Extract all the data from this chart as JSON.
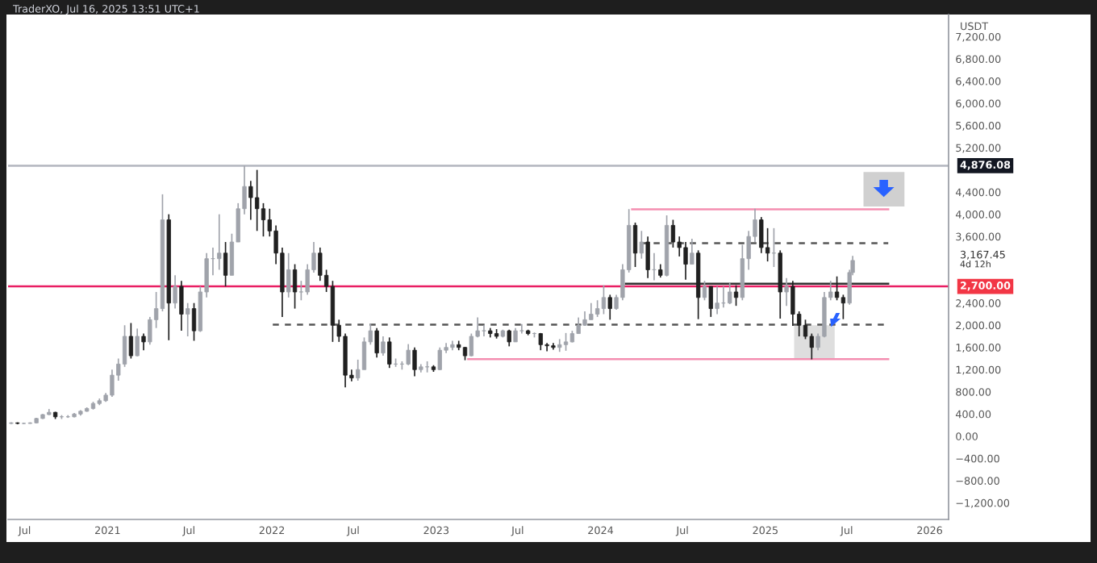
{
  "chart_data": {
    "type": "candlestick",
    "title": "TraderXO, Jul 16, 2025 13:51 UTC+1",
    "ylabel": "USDT",
    "x": [
      "2020-06-01",
      "2020-06-15",
      "2020-06-29",
      "2020-07-13",
      "2020-07-27",
      "2020-08-10",
      "2020-08-24",
      "2020-09-07",
      "2020-09-21",
      "2020-10-05",
      "2020-10-19",
      "2020-11-02",
      "2020-11-16",
      "2020-11-30",
      "2020-12-14",
      "2020-12-28",
      "2021-01-11",
      "2021-01-25",
      "2021-02-08",
      "2021-02-22",
      "2021-03-08",
      "2021-03-22",
      "2021-04-05",
      "2021-04-19",
      "2021-05-03",
      "2021-05-17",
      "2021-05-31",
      "2021-06-14",
      "2021-06-28",
      "2021-07-12",
      "2021-07-26",
      "2021-08-09",
      "2021-08-23",
      "2021-09-06",
      "2021-09-20",
      "2021-10-04",
      "2021-10-18",
      "2021-11-01",
      "2021-11-15",
      "2021-11-29",
      "2021-12-13",
      "2021-12-27",
      "2022-01-10",
      "2022-01-24",
      "2022-02-07",
      "2022-02-21",
      "2022-03-07",
      "2022-03-21",
      "2022-04-04",
      "2022-04-18",
      "2022-05-02",
      "2022-05-16",
      "2022-05-30",
      "2022-06-13",
      "2022-06-27",
      "2022-07-11",
      "2022-07-25",
      "2022-08-08",
      "2022-08-22",
      "2022-09-05",
      "2022-09-19",
      "2022-10-03",
      "2022-10-17",
      "2022-10-31",
      "2022-11-14",
      "2022-11-28",
      "2022-12-12",
      "2022-12-26",
      "2023-01-09",
      "2023-01-23",
      "2023-02-06",
      "2023-02-20",
      "2023-03-06",
      "2023-03-20",
      "2023-04-03",
      "2023-04-17",
      "2023-05-01",
      "2023-05-15",
      "2023-05-29",
      "2023-06-12",
      "2023-06-26",
      "2023-07-10",
      "2023-07-24",
      "2023-08-07",
      "2023-08-21",
      "2023-09-04",
      "2023-09-18",
      "2023-10-02",
      "2023-10-16",
      "2023-10-30",
      "2023-11-13",
      "2023-11-27",
      "2023-12-11",
      "2023-12-25",
      "2024-01-08",
      "2024-01-22",
      "2024-02-05",
      "2024-02-19",
      "2024-03-04",
      "2024-03-18",
      "2024-04-01",
      "2024-04-15",
      "2024-04-29",
      "2024-05-13",
      "2024-05-27",
      "2024-06-10",
      "2024-06-24",
      "2024-07-08",
      "2024-07-22",
      "2024-08-05",
      "2024-08-19",
      "2024-09-02",
      "2024-09-16",
      "2024-09-30",
      "2024-10-14",
      "2024-10-28",
      "2024-11-11",
      "2024-11-25",
      "2024-12-09",
      "2024-12-23",
      "2025-01-06",
      "2025-01-20",
      "2025-02-03",
      "2025-02-17",
      "2025-03-03",
      "2025-03-17",
      "2025-03-31",
      "2025-04-14",
      "2025-04-28",
      "2025-05-12",
      "2025-05-26",
      "2025-06-09",
      "2025-06-23",
      "2025-07-07",
      "2025-07-14"
    ],
    "ohlc": [
      [
        230,
        250,
        220,
        240
      ],
      [
        240,
        250,
        215,
        230
      ],
      [
        230,
        245,
        220,
        230
      ],
      [
        230,
        250,
        225,
        240
      ],
      [
        240,
        330,
        235,
        320
      ],
      [
        320,
        400,
        310,
        390
      ],
      [
        390,
        490,
        380,
        430
      ],
      [
        430,
        440,
        310,
        350
      ],
      [
        350,
        380,
        310,
        350
      ],
      [
        350,
        380,
        330,
        350
      ],
      [
        350,
        420,
        340,
        400
      ],
      [
        400,
        470,
        370,
        450
      ],
      [
        450,
        520,
        440,
        500
      ],
      [
        500,
        620,
        480,
        590
      ],
      [
        590,
        680,
        560,
        640
      ],
      [
        640,
        780,
        620,
        740
      ],
      [
        740,
        1200,
        710,
        1100
      ],
      [
        1100,
        1400,
        1000,
        1300
      ],
      [
        1300,
        2000,
        1250,
        1800
      ],
      [
        1800,
        2040,
        1400,
        1450
      ],
      [
        1450,
        1940,
        1440,
        1800
      ],
      [
        1800,
        1850,
        1550,
        1700
      ],
      [
        1700,
        2150,
        1650,
        2100
      ],
      [
        2100,
        2600,
        1950,
        2300
      ],
      [
        2300,
        4360,
        2250,
        3900
      ],
      [
        3900,
        4000,
        1730,
        2400
      ],
      [
        2400,
        2900,
        2300,
        2700
      ],
      [
        2700,
        2800,
        1900,
        2200
      ],
      [
        2200,
        2400,
        1800,
        2300
      ],
      [
        2300,
        2400,
        1720,
        1900
      ],
      [
        1900,
        2700,
        1880,
        2600
      ],
      [
        2600,
        3300,
        2500,
        3200
      ],
      [
        3200,
        3400,
        2900,
        3200
      ],
      [
        3200,
        4000,
        3000,
        3300
      ],
      [
        3300,
        3500,
        2700,
        2900
      ],
      [
        2900,
        3650,
        2900,
        3500
      ],
      [
        3500,
        4200,
        3500,
        4100
      ],
      [
        4100,
        4876.08,
        4000,
        4500
      ],
      [
        4500,
        4600,
        3900,
        4300
      ],
      [
        4300,
        4800,
        3700,
        4100
      ],
      [
        4100,
        4200,
        3600,
        3900
      ],
      [
        3900,
        4100,
        3600,
        3700
      ],
      [
        3700,
        3800,
        3100,
        3300
      ],
      [
        3300,
        3400,
        2150,
        2600
      ],
      [
        2600,
        3300,
        2500,
        3000
      ],
      [
        3000,
        3100,
        2300,
        2600
      ],
      [
        2600,
        2800,
        2450,
        2600
      ],
      [
        2600,
        3100,
        2550,
        3000
      ],
      [
        3000,
        3500,
        2950,
        3300
      ],
      [
        3300,
        3400,
        2800,
        2900
      ],
      [
        2900,
        3000,
        2600,
        2700
      ],
      [
        2700,
        2800,
        1700,
        2000
      ],
      [
        2000,
        2100,
        1700,
        1800
      ],
      [
        1800,
        1850,
        880,
        1100
      ],
      [
        1100,
        1200,
        990,
        1050
      ],
      [
        1050,
        1380,
        1000,
        1200
      ],
      [
        1200,
        1780,
        1200,
        1700
      ],
      [
        1700,
        2030,
        1650,
        1900
      ],
      [
        1900,
        1950,
        1420,
        1500
      ],
      [
        1500,
        1800,
        1450,
        1700
      ],
      [
        1700,
        1780,
        1230,
        1300
      ],
      [
        1300,
        1400,
        1250,
        1300
      ],
      [
        1300,
        1350,
        1200,
        1300
      ],
      [
        1300,
        1660,
        1280,
        1550
      ],
      [
        1550,
        1600,
        1080,
        1200
      ],
      [
        1200,
        1300,
        1150,
        1250
      ],
      [
        1250,
        1350,
        1150,
        1250
      ],
      [
        1250,
        1280,
        1160,
        1200
      ],
      [
        1200,
        1600,
        1190,
        1550
      ],
      [
        1550,
        1680,
        1500,
        1600
      ],
      [
        1600,
        1720,
        1550,
        1650
      ],
      [
        1650,
        1720,
        1550,
        1600
      ],
      [
        1600,
        1610,
        1370,
        1450
      ],
      [
        1450,
        1850,
        1440,
        1800
      ],
      [
        1800,
        2140,
        1780,
        1900
      ],
      [
        1900,
        2000,
        1800,
        1900
      ],
      [
        1900,
        1950,
        1780,
        1850
      ],
      [
        1850,
        1930,
        1760,
        1800
      ],
      [
        1800,
        1920,
        1780,
        1900
      ],
      [
        1900,
        1920,
        1620,
        1700
      ],
      [
        1700,
        1950,
        1700,
        1900
      ],
      [
        1900,
        2020,
        1850,
        1900
      ],
      [
        1900,
        1920,
        1820,
        1850
      ],
      [
        1850,
        1870,
        1780,
        1850
      ],
      [
        1850,
        1860,
        1550,
        1650
      ],
      [
        1650,
        1680,
        1530,
        1630
      ],
      [
        1630,
        1680,
        1560,
        1600
      ],
      [
        1600,
        1750,
        1520,
        1650
      ],
      [
        1650,
        1860,
        1540,
        1700
      ],
      [
        1700,
        1900,
        1690,
        1850
      ],
      [
        1850,
        2140,
        1850,
        2000
      ],
      [
        2000,
        2250,
        1990,
        2100
      ],
      [
        2100,
        2400,
        2100,
        2200
      ],
      [
        2200,
        2450,
        2150,
        2300
      ],
      [
        2300,
        2720,
        2200,
        2500
      ],
      [
        2500,
        2550,
        2100,
        2300
      ],
      [
        2300,
        2550,
        2280,
        2500
      ],
      [
        2500,
        3100,
        2450,
        3000
      ],
      [
        3000,
        4093,
        2950,
        3800
      ],
      [
        3800,
        3850,
        3050,
        3300
      ],
      [
        3300,
        3700,
        3200,
        3500
      ],
      [
        3500,
        3600,
        2850,
        3000
      ],
      [
        3000,
        3300,
        2810,
        3000
      ],
      [
        3000,
        3100,
        2860,
        2900
      ],
      [
        2900,
        3980,
        2880,
        3800
      ],
      [
        3800,
        3900,
        3400,
        3500
      ],
      [
        3500,
        3600,
        3240,
        3400
      ],
      [
        3400,
        3500,
        2820,
        3100
      ],
      [
        3100,
        3560,
        3100,
        3300
      ],
      [
        3300,
        3350,
        2110,
        2500
      ],
      [
        2500,
        2800,
        2450,
        2700
      ],
      [
        2700,
        2700,
        2150,
        2300
      ],
      [
        2300,
        2700,
        2200,
        2400
      ],
      [
        2400,
        2700,
        2320,
        2400
      ],
      [
        2400,
        2770,
        2380,
        2600
      ],
      [
        2600,
        2720,
        2350,
        2500
      ],
      [
        2500,
        3450,
        2450,
        3200
      ],
      [
        3200,
        3700,
        3000,
        3600
      ],
      [
        3600,
        4100,
        3500,
        3900
      ],
      [
        3900,
        3950,
        3300,
        3400
      ],
      [
        3400,
        3750,
        3150,
        3300
      ],
      [
        3300,
        3750,
        3050,
        3300
      ],
      [
        3300,
        3350,
        2120,
        2600
      ],
      [
        2600,
        2850,
        2350,
        2700
      ],
      [
        2700,
        2800,
        1990,
        2200
      ],
      [
        2200,
        2250,
        1800,
        2000
      ],
      [
        2000,
        2100,
        1750,
        1800
      ],
      [
        1800,
        1850,
        1385,
        1600
      ],
      [
        1600,
        1850,
        1550,
        1800
      ],
      [
        1800,
        2600,
        1780,
        2500
      ],
      [
        2500,
        2800,
        2450,
        2600
      ],
      [
        2600,
        2880,
        2450,
        2500
      ],
      [
        2500,
        2550,
        2110,
        2400
      ],
      [
        2400,
        3000,
        2370,
        2950
      ],
      [
        2950,
        3250,
        2900,
        3167.45
      ]
    ],
    "series": [
      {
        "type": "line",
        "color": "#f48fb1",
        "line_style": "solid",
        "x": [
          "2024-03-11",
          "2025-10-01"
        ],
        "values": [
          4090,
          4090
        ]
      },
      {
        "type": "line",
        "color": "#555555",
        "line_style": "dashed",
        "x": [
          "2024-04-01",
          "2025-10-01"
        ],
        "values": [
          3480,
          3480
        ]
      },
      {
        "type": "line",
        "color": "#333333",
        "line_style": "solid",
        "x": [
          "2024-02-26",
          "2025-10-01"
        ],
        "values": [
          2750,
          2750
        ]
      },
      {
        "type": "line",
        "color": "#555555",
        "line_style": "dashed",
        "x": [
          "2022-01-03",
          "2025-10-01"
        ],
        "values": [
          2010,
          2010
        ]
      },
      {
        "type": "line",
        "color": "#f48fb1",
        "line_style": "solid",
        "x": [
          "2023-03-13",
          "2025-10-01"
        ],
        "values": [
          1390,
          1390
        ]
      }
    ],
    "ref_lines": [
      {
        "axis": "y",
        "value": 4876.08,
        "label": "4,876.08",
        "color": "#b2b5be"
      },
      {
        "axis": "y",
        "value": 2700,
        "label": "2,700.00",
        "color": "#e91e63"
      }
    ],
    "annotations": [
      "3,167.45",
      "4d 12h"
    ],
    "xlim": [
      "2020-05-25",
      "2026-02-12"
    ],
    "xticks": [
      {
        "value": "2020-07-01",
        "label": "Jul"
      },
      {
        "value": "2021-01-01",
        "label": "2021"
      },
      {
        "value": "2021-07-01",
        "label": "Jul"
      },
      {
        "value": "2022-01-01",
        "label": "2022"
      },
      {
        "value": "2022-07-01",
        "label": "Jul"
      },
      {
        "value": "2023-01-01",
        "label": "2023"
      },
      {
        "value": "2023-07-01",
        "label": "Jul"
      },
      {
        "value": "2024-01-01",
        "label": "2024"
      },
      {
        "value": "2024-07-01",
        "label": "Jul"
      },
      {
        "value": "2025-01-01",
        "label": "2025"
      },
      {
        "value": "2025-07-01",
        "label": "Jul"
      },
      {
        "value": "2026-01-01",
        "label": "2026"
      }
    ],
    "ylim": [
      -1500,
      7600
    ],
    "yticks": [
      {
        "value": 7200,
        "label": "7,200.00"
      },
      {
        "value": 6800,
        "label": "6,800.00"
      },
      {
        "value": 6400,
        "label": "6,400.00"
      },
      {
        "value": 6000,
        "label": "6,000.00"
      },
      {
        "value": 5600,
        "label": "5,600.00"
      },
      {
        "value": 5200,
        "label": "5,200.00"
      },
      {
        "value": 4400,
        "label": "4,400.00"
      },
      {
        "value": 4000,
        "label": "4,000.00"
      },
      {
        "value": 3600,
        "label": "3,600.00"
      },
      {
        "value": 2400,
        "label": "2,400.00"
      },
      {
        "value": 2000,
        "label": "2,000.00"
      },
      {
        "value": 1600,
        "label": "1,600.00"
      },
      {
        "value": 1200,
        "label": "1,200.00"
      },
      {
        "value": 800,
        "label": "800.00"
      },
      {
        "value": 400,
        "label": "400.00"
      },
      {
        "value": 0,
        "label": "0.00"
      },
      {
        "value": -400,
        "label": "−400.00"
      },
      {
        "value": -800,
        "label": "−800.00"
      },
      {
        "value": -1200,
        "label": "−1,200.00"
      }
    ],
    "grid": false
  }
}
